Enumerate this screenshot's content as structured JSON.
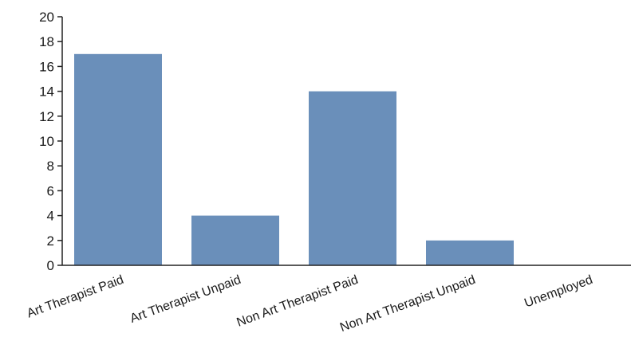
{
  "chart_data": {
    "type": "bar",
    "title": "",
    "xlabel": "",
    "ylabel": "",
    "categories": [
      "Art Therapist Paid",
      "Art Therapist Unpaid",
      "Non Art Therapist Paid",
      "Non Art Therapist Unpaid",
      "Unemployed"
    ],
    "values": [
      17,
      4,
      14,
      2,
      0
    ],
    "ylim": [
      0,
      20
    ],
    "yticks": [
      "0",
      "2",
      "4",
      "6",
      "8",
      "10",
      "12",
      "14",
      "16",
      "18",
      "20"
    ],
    "bar_color": "#6a8fba",
    "grid": false,
    "legend": "none"
  }
}
